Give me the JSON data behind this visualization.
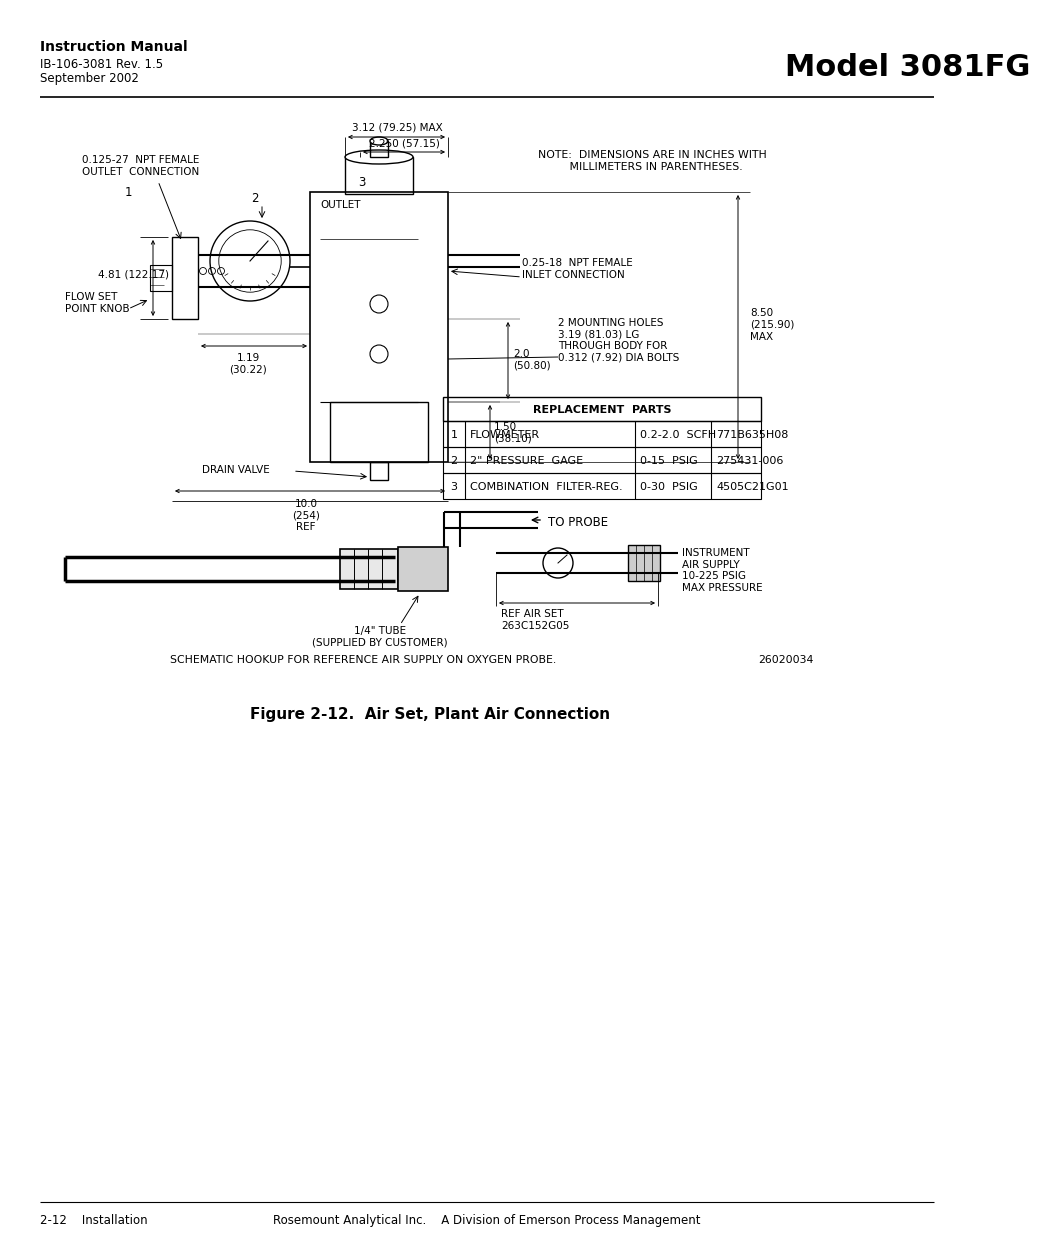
{
  "page_bg": "#ffffff",
  "header": {
    "manual_title": "Instruction Manual",
    "manual_sub1": "IB-106-3081 Rev. 1.5",
    "manual_sub2": "September 2002",
    "model": "Model 3081FG"
  },
  "footer": {
    "left": "2-12    Installation",
    "center": "Rosemount Analytical Inc.    A Division of Emerson Process Management"
  },
  "figure_caption": "Figure 2-12.  Air Set, Plant Air Connection",
  "schematic_note": "SCHEMATIC HOOKUP FOR REFERENCE AIR SUPPLY ON OXYGEN PROBE.",
  "schematic_note_num": "26020034",
  "replacement_parts_title": "REPLACEMENT  PARTS",
  "replacement_parts": [
    {
      "num": "1",
      "name": "FLOWMETER",
      "spec": "0.2-2.0  SCFH",
      "part": "771B635H08"
    },
    {
      "num": "2",
      "name": "2\" PRESSURE  GAGE",
      "spec": "0-15  PSIG",
      "part": "275431-006"
    },
    {
      "num": "3",
      "name": "COMBINATION  FILTER-REG.",
      "spec": "0-30  PSIG",
      "part": "4505C21G01"
    }
  ],
  "labels": {
    "note_text": "NOTE:  DIMENSIONS ARE IN INCHES WITH\n         MILLIMETERS IN PARENTHESES.",
    "outlet_connection": "0.125-27  NPT FEMALE\nOUTLET  CONNECTION",
    "outlet": "OUTLET",
    "flow_set": "FLOW SET\nPOINT KNOB",
    "drain_valve": "DRAIN VALVE",
    "inlet_connection": "0.25-18  NPT FEMALE\nINLET CONNECTION",
    "mounting_holes": "2 MOUNTING HOLES\n3.19 (81.03) LG\nTHROUGH BODY FOR\n0.312 (7.92) DIA BOLTS",
    "dim_312": "3.12 (79.25) MAX",
    "dim_2250": "2.250 (57.15)",
    "dim_481": "4.81 (122.17)",
    "dim_850": "8.50\n(215.90)\nMAX",
    "dim_119": "1.19\n(30.22)",
    "dim_20": "2.0\n(50.80)",
    "dim_150": "1.50\n(38.10)",
    "dim_100": "10.0\n(254)\nREF",
    "label_1": "1",
    "label_2": "2",
    "label_3": "3",
    "to_probe": "TO PROBE",
    "tube_14": "1/4\" TUBE\n(SUPPLIED BY CUSTOMER)",
    "ref_air": "REF AIR SET\n263C152G05",
    "instrument_air": "INSTRUMENT\nAIR SUPPLY\n10-225 PSIG\nMAX PRESSURE"
  }
}
